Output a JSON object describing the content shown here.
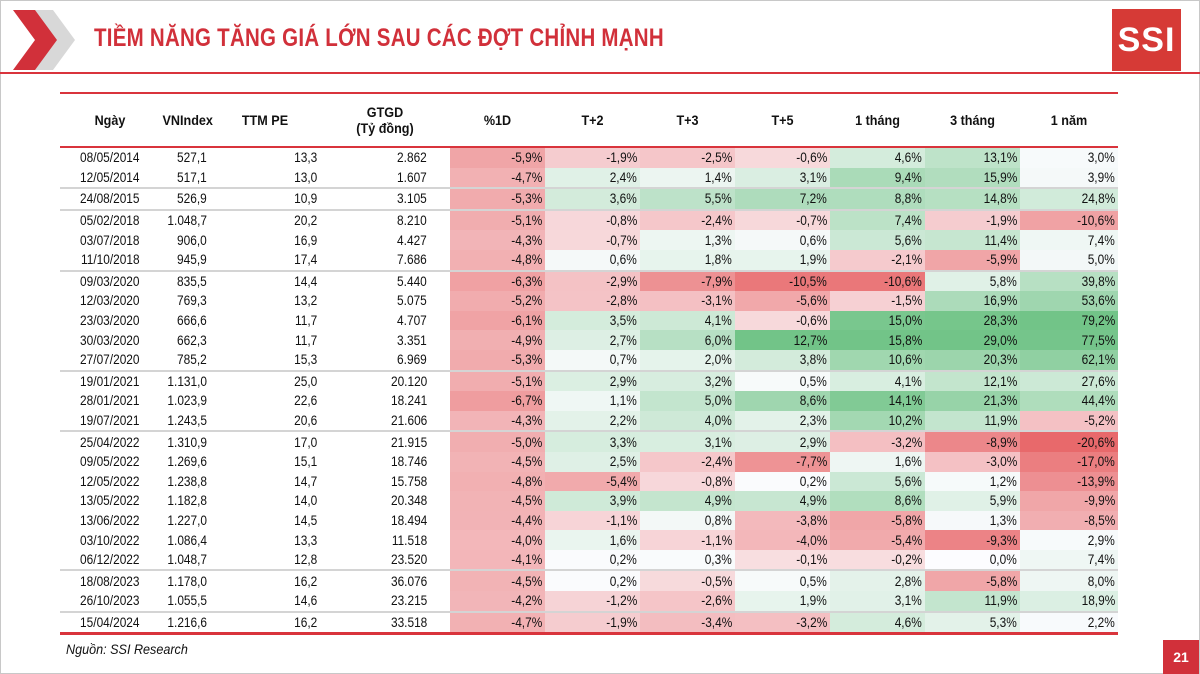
{
  "header": {
    "title": "TIỀM NĂNG TĂNG GIÁ LỚN SAU CÁC ĐỢT CHỈNH MẠNH",
    "logo_text": "SSI"
  },
  "table": {
    "columns": [
      "Ngày",
      "VNIndex",
      "TTM PE",
      "GTGD (Tỷ đồng)",
      "%1D",
      "T+2",
      "T+3",
      "T+5",
      "1 tháng",
      "3 tháng",
      "1 năm"
    ],
    "columns_line1": [
      "Ngày",
      "VNIndex",
      "TTM PE",
      "GTGD",
      "%1D",
      "T+2",
      "T+3",
      "T+5",
      "1 tháng",
      "3 tháng",
      "1 năm"
    ],
    "columns_line2": [
      "",
      "",
      "",
      "(Tỷ đồng)",
      "",
      "",
      "",
      "",
      "",
      "",
      ""
    ],
    "rows": [
      [
        "08/05/2014",
        "527,1",
        "13,3",
        "2.862",
        "-5,9%",
        "-1,9%",
        "-2,5%",
        "-0,6%",
        "4,6%",
        "13,1%",
        "3,0%"
      ],
      [
        "12/05/2014",
        "517,1",
        "13,0",
        "1.607",
        "-4,7%",
        "2,4%",
        "1,4%",
        "3,1%",
        "9,4%",
        "15,9%",
        "3,9%"
      ],
      [
        "24/08/2015",
        "526,9",
        "10,9",
        "3.105",
        "-5,3%",
        "3,6%",
        "5,5%",
        "7,2%",
        "8,8%",
        "14,8%",
        "24,8%"
      ],
      [
        "05/02/2018",
        "1.048,7",
        "20,2",
        "8.210",
        "-5,1%",
        "-0,8%",
        "-2,4%",
        "-0,7%",
        "7,4%",
        "-1,9%",
        "-10,6%"
      ],
      [
        "03/07/2018",
        "906,0",
        "16,9",
        "4.427",
        "-4,3%",
        "-0,7%",
        "1,3%",
        "0,6%",
        "5,6%",
        "11,4%",
        "7,4%"
      ],
      [
        "11/10/2018",
        "945,9",
        "17,4",
        "7.686",
        "-4,8%",
        "0,6%",
        "1,8%",
        "1,9%",
        "-2,1%",
        "-5,9%",
        "5,0%"
      ],
      [
        "09/03/2020",
        "835,5",
        "14,4",
        "5.440",
        "-6,3%",
        "-2,9%",
        "-7,9%",
        "-10,5%",
        "-10,6%",
        "5,8%",
        "39,8%"
      ],
      [
        "12/03/2020",
        "769,3",
        "13,2",
        "5.075",
        "-5,2%",
        "-2,8%",
        "-3,1%",
        "-5,6%",
        "-1,5%",
        "16,9%",
        "53,6%"
      ],
      [
        "23/03/2020",
        "666,6",
        "11,7",
        "4.707",
        "-6,1%",
        "3,5%",
        "4,1%",
        "-0,6%",
        "15,0%",
        "28,3%",
        "79,2%"
      ],
      [
        "30/03/2020",
        "662,3",
        "11,7",
        "3.351",
        "-4,9%",
        "2,7%",
        "6,0%",
        "12,7%",
        "15,8%",
        "29,0%",
        "77,5%"
      ],
      [
        "27/07/2020",
        "785,2",
        "15,3",
        "6.969",
        "-5,3%",
        "0,7%",
        "2,0%",
        "3,8%",
        "10,6%",
        "20,3%",
        "62,1%"
      ],
      [
        "19/01/2021",
        "1.131,0",
        "25,0",
        "20.120",
        "-5,1%",
        "2,9%",
        "3,2%",
        "0,5%",
        "4,1%",
        "12,1%",
        "27,6%"
      ],
      [
        "28/01/2021",
        "1.023,9",
        "22,6",
        "18.241",
        "-6,7%",
        "1,1%",
        "5,0%",
        "8,6%",
        "14,1%",
        "21,3%",
        "44,4%"
      ],
      [
        "19/07/2021",
        "1.243,5",
        "20,6",
        "21.606",
        "-4,3%",
        "2,2%",
        "4,0%",
        "2,3%",
        "10,2%",
        "11,9%",
        "-5,2%"
      ],
      [
        "25/04/2022",
        "1.310,9",
        "17,0",
        "21.915",
        "-5,0%",
        "3,3%",
        "3,1%",
        "2,9%",
        "-3,2%",
        "-8,9%",
        "-20,6%"
      ],
      [
        "09/05/2022",
        "1.269,6",
        "15,1",
        "18.746",
        "-4,5%",
        "2,5%",
        "-2,4%",
        "-7,7%",
        "1,6%",
        "-3,0%",
        "-17,0%"
      ],
      [
        "12/05/2022",
        "1.238,8",
        "14,7",
        "15.758",
        "-4,8%",
        "-5,4%",
        "-0,8%",
        "0,2%",
        "5,6%",
        "1,2%",
        "-13,9%"
      ],
      [
        "13/05/2022",
        "1.182,8",
        "14,0",
        "20.348",
        "-4,5%",
        "3,9%",
        "4,9%",
        "4,9%",
        "8,6%",
        "5,9%",
        "-9,9%"
      ],
      [
        "13/06/2022",
        "1.227,0",
        "14,5",
        "18.494",
        "-4,4%",
        "-1,1%",
        "0,8%",
        "-3,8%",
        "-5,8%",
        "1,3%",
        "-8,5%"
      ],
      [
        "03/10/2022",
        "1.086,4",
        "13,3",
        "11.518",
        "-4,0%",
        "1,6%",
        "-1,1%",
        "-4,0%",
        "-5,4%",
        "-9,3%",
        "2,9%"
      ],
      [
        "06/12/2022",
        "1.048,7",
        "12,8",
        "23.520",
        "-4,1%",
        "0,2%",
        "0,3%",
        "-0,1%",
        "-0,2%",
        "0,0%",
        "7,4%"
      ],
      [
        "18/08/2023",
        "1.178,0",
        "16,2",
        "36.076",
        "-4,5%",
        "0,2%",
        "-0,5%",
        "0,5%",
        "2,8%",
        "-5,8%",
        "8,0%"
      ],
      [
        "26/10/2023",
        "1.055,5",
        "14,6",
        "23.215",
        "-4,2%",
        "-1,2%",
        "-2,6%",
        "1,9%",
        "3,1%",
        "11,9%",
        "18,9%"
      ],
      [
        "15/04/2024",
        "1.216,6",
        "16,2",
        "33.518",
        "-4,7%",
        "-1,9%",
        "-3,4%",
        "-3,2%",
        "4,6%",
        "5,3%",
        "2,2%"
      ]
    ],
    "group_separator_after_rows": [
      1,
      2,
      5,
      10,
      13,
      20,
      22
    ]
  },
  "colors": {
    "accent": "#d1303a",
    "negative": "#e8696b",
    "positive": "#63be7b",
    "neutral": "#fcfcff"
  },
  "footer": {
    "source": "Nguồn: SSI Research",
    "page_number": "21"
  }
}
